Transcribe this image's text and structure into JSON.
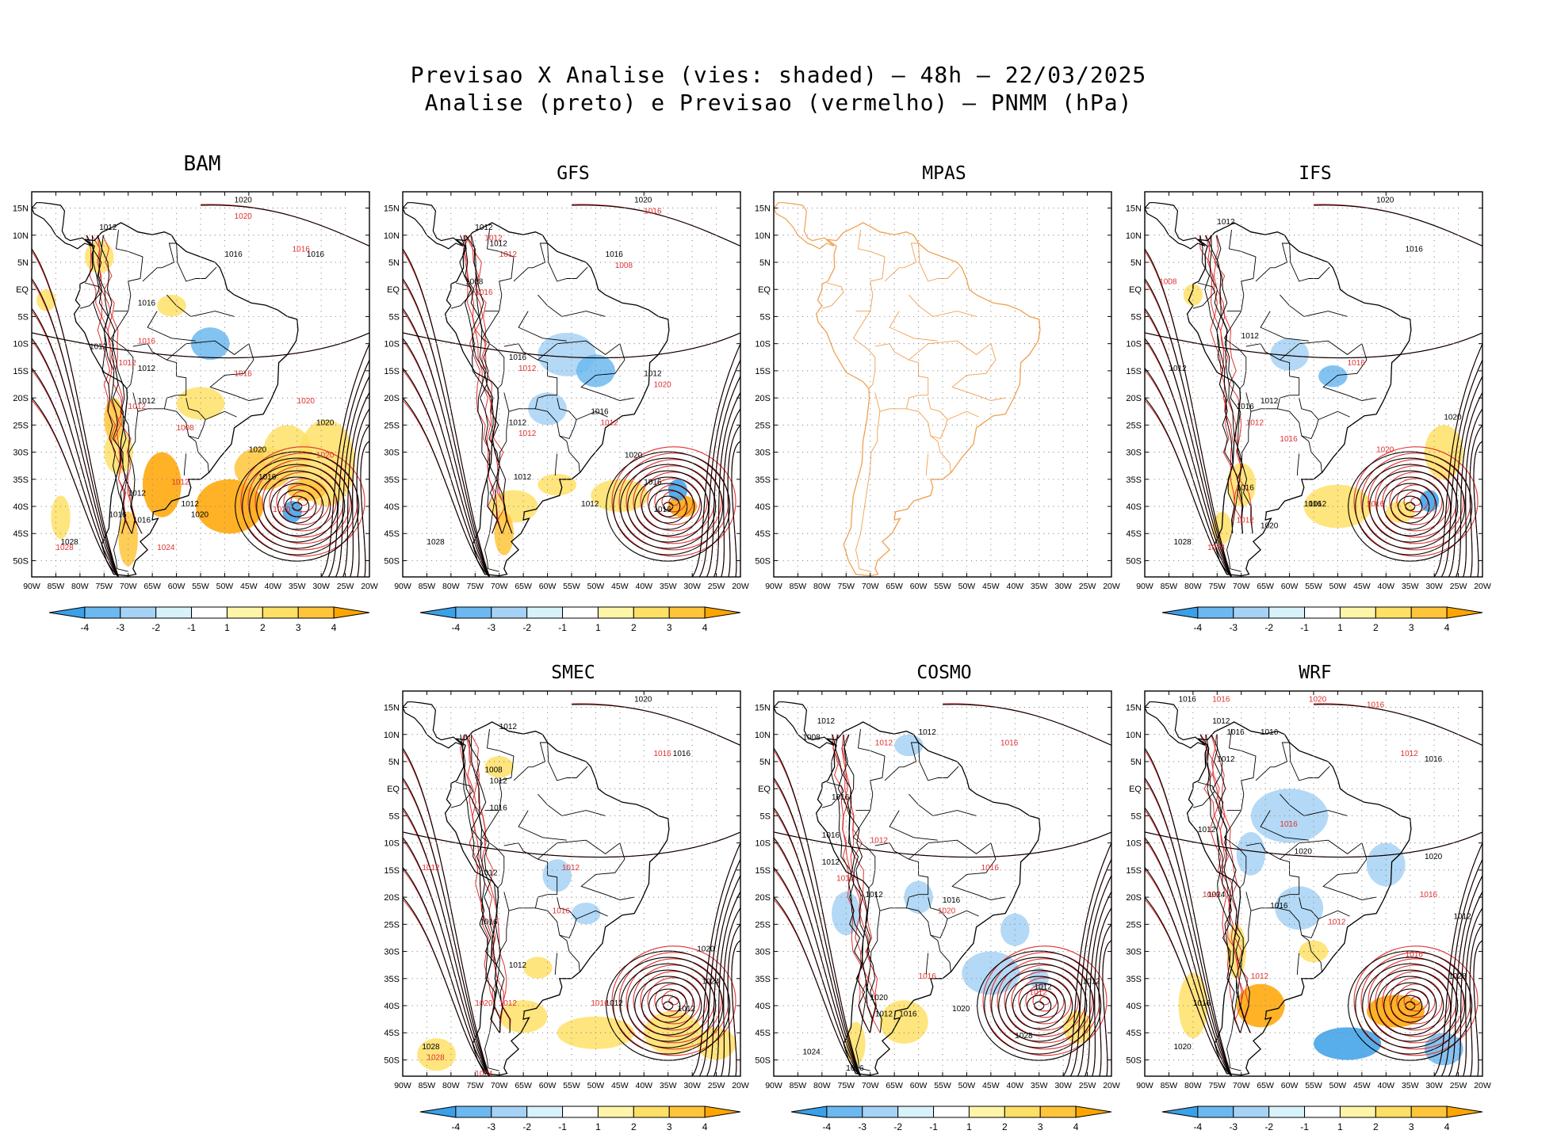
{
  "figure": {
    "title_line1": "Previsao X Analise (vies: shaded) – 48h – 22/03/2025",
    "title_line2": "Analise (preto) e Previsao (vermelho) – PNMM (hPa)"
  },
  "axes": {
    "lat_labels": [
      "15N",
      "10N",
      "5N",
      "EQ",
      "5S",
      "10S",
      "15S",
      "20S",
      "25S",
      "30S",
      "35S",
      "40S",
      "45S",
      "50S"
    ],
    "lon_labels": [
      "90W",
      "85W",
      "80W",
      "75W",
      "70W",
      "65W",
      "60W",
      "55W",
      "50W",
      "45W",
      "40W",
      "35W",
      "30W",
      "25W",
      "20W"
    ]
  },
  "colorbar": {
    "labels": [
      "-4",
      "-3",
      "-2",
      "-1",
      "1",
      "2",
      "3",
      "4"
    ],
    "colors": [
      "#3aa0e8",
      "#6cb8f0",
      "#a6d2f5",
      "#d8f2fb",
      "#ffffff",
      "#fff5a8",
      "#ffe066",
      "#ffc53a",
      "#ffa500"
    ]
  },
  "colors": {
    "analysis": "#000000",
    "forecast": "#e03030",
    "mpas_coast": "#f0a050",
    "bias_negative": "#6cb8f0",
    "bias_positive": "#ffd24a"
  },
  "panels": [
    {
      "id": "bam",
      "title": "BAM",
      "has_data": true,
      "show_colorbar": true,
      "labels_black": [
        "1020",
        "1012",
        "1016",
        "1016",
        "1016",
        "1012",
        "1012",
        "1012",
        "1020",
        "1020",
        "1016",
        "1012",
        "1016",
        "1028",
        "1012",
        "1016",
        "1020"
      ],
      "labels_red": [
        "1020",
        "1016",
        "1016",
        "1012",
        "1008",
        "1020",
        "1020",
        "1016",
        "1012",
        "1028",
        "1024",
        "1012",
        "1020"
      ]
    },
    {
      "id": "gfs",
      "title": "GFS",
      "has_data": true,
      "show_colorbar": true,
      "labels_black": [
        "1020",
        "1012",
        "1016",
        "1008",
        "1012",
        "1016",
        "1012",
        "1016",
        "1012",
        "1016",
        "1020",
        "1016",
        "1028",
        "1012",
        "1012"
      ],
      "labels_red": [
        "1016",
        "1012",
        "1008",
        "1016",
        "1012",
        "1012",
        "1012",
        "1012",
        "1020"
      ]
    },
    {
      "id": "mpas",
      "title": "MPAS",
      "has_data": false,
      "show_colorbar": false,
      "labels_black": [],
      "labels_red": []
    },
    {
      "id": "ifs",
      "title": "IFS",
      "has_data": true,
      "show_colorbar": true,
      "labels_black": [
        "1020",
        "1012",
        "1016",
        "1012",
        "1012",
        "1016",
        "1012",
        "1020",
        "1016",
        "1016",
        "1012",
        "1028",
        "1020"
      ],
      "labels_red": [
        "1008",
        "1016",
        "1012",
        "1020",
        "1016",
        "1024",
        "1016",
        "1012"
      ]
    },
    {
      "id": "smec",
      "title": "SMEC",
      "has_data": true,
      "show_colorbar": true,
      "labels_black": [
        "1020",
        "1012",
        "1016",
        "1008",
        "1012",
        "1016",
        "1012",
        "1016",
        "1012",
        "1020",
        "1024",
        "1012",
        "1012",
        "1028"
      ],
      "labels_red": [
        "1016",
        "1012",
        "1012",
        "1016",
        "1016",
        "1012",
        "1020",
        "1028",
        "1024"
      ]
    },
    {
      "id": "cosmo",
      "title": "COSMO",
      "has_data": true,
      "show_colorbar": true,
      "labels_black": [
        "1012",
        "1008",
        "1012",
        "1016",
        "1016",
        "1012",
        "1012",
        "1016",
        "1020",
        "1012",
        "1016",
        "1020",
        "1012",
        "1012",
        "1028",
        "1024",
        "1016"
      ],
      "labels_red": [
        "1016",
        "1012",
        "1012",
        "1016",
        "1012",
        "1020",
        "1016",
        "1012"
      ]
    },
    {
      "id": "wrf",
      "title": "WRF",
      "has_data": true,
      "show_colorbar": true,
      "labels_black": [
        "1016",
        "1012",
        "1016",
        "1016",
        "1012",
        "1016",
        "1012",
        "1020",
        "1020",
        "1024",
        "1016",
        "1012",
        "1028",
        "1016",
        "1020"
      ],
      "labels_red": [
        "1016",
        "1020",
        "1016",
        "1012",
        "1016",
        "1020",
        "1016",
        "1012",
        "1016",
        "1012"
      ]
    }
  ]
}
